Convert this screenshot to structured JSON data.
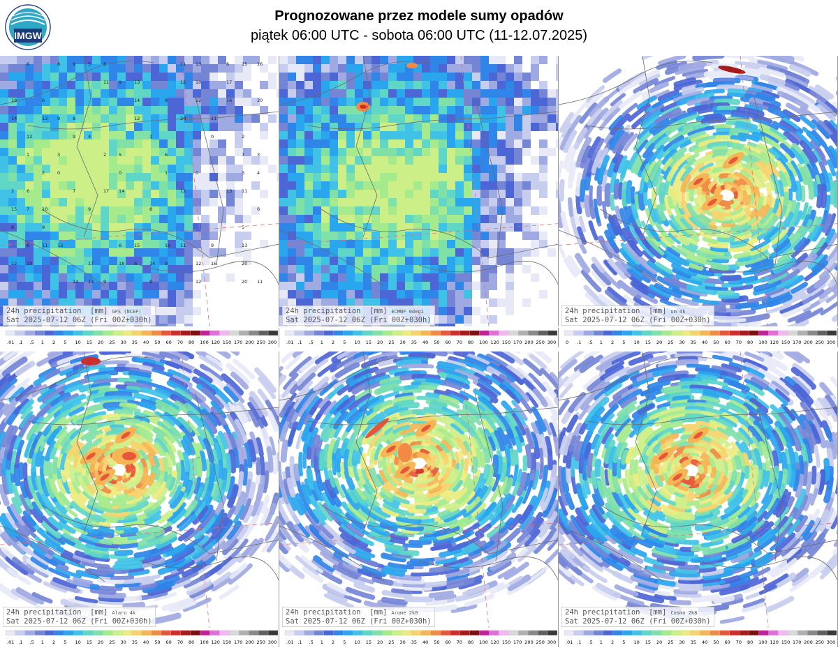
{
  "header": {
    "title": "Prognozowane przez modele sumy opadów",
    "subtitle": "piątek 06:00 UTC - sobota 06:00 UTC (11-12.07.2025)",
    "logo_text": "IMGW"
  },
  "colors": {
    "scale": [
      "#ffffff",
      "#e7e9f7",
      "#c7cdee",
      "#9fa9e2",
      "#7585d6",
      "#4c66d6",
      "#2f86e8",
      "#2aa6ee",
      "#40c2e6",
      "#5fd6c6",
      "#7fe0a8",
      "#a6ea8e",
      "#cdef88",
      "#eceb80",
      "#f6d36c",
      "#f5b554",
      "#f08a44",
      "#e6573a",
      "#cf2c2c",
      "#a81a1a",
      "#7d0f0f",
      "#c0209a",
      "#e070d8",
      "#f0b8ee",
      "#d8d8d8",
      "#b0b0b0",
      "#888888",
      "#606060",
      "#383838"
    ]
  },
  "panels": [
    {
      "id": "gfs",
      "label_line1": "24h precipitation  [mm]",
      "model": "GFS (NCEP)",
      "label_line2": "Sat 2025-07-12 06Z (Fri 00Z+030h)",
      "legend": [
        ".01",
        ".1",
        ".5",
        "1",
        "2",
        "5",
        "10",
        "15",
        "20",
        "25",
        "30",
        "35",
        "40",
        "50",
        "60",
        "70",
        "80",
        "100",
        "120",
        "150",
        "170",
        "200",
        "250",
        "300"
      ]
    },
    {
      "id": "ecmwf",
      "label_line1": "24h precipitation  [mm]",
      "model": "ECMWF 0deg1",
      "label_line2": "Sat 2025-07-12 06Z (Fri 00Z+030h)",
      "legend": [
        ".01",
        ".1",
        ".5",
        "1",
        "2",
        "5",
        "10",
        "15",
        "20",
        "25",
        "30",
        "35",
        "40",
        "50",
        "60",
        "70",
        "80",
        "100",
        "120",
        "150",
        "170",
        "200",
        "250",
        "300"
      ]
    },
    {
      "id": "um",
      "label_line1": "24h precipitation  [mm]",
      "model": "um 4k",
      "label_line2": "Sat 2025-07-12 06Z (Fri 00Z+030h)",
      "legend": [
        "0",
        ".1",
        ".5",
        "1",
        "2",
        "5",
        "10",
        "15",
        "20",
        "25",
        "30",
        "35",
        "40",
        "50",
        "60",
        "70",
        "80",
        "100",
        "120",
        "150",
        "170",
        "200",
        "250",
        "300"
      ]
    },
    {
      "id": "alaro",
      "label_line1": "24h precipitation  [mm]",
      "model": "Alaro 4k",
      "label_line2": "Sat 2025-07-12 06Z (Fri 00Z+030h)",
      "legend": [
        ".01",
        ".1",
        ".5",
        "1",
        "2",
        "5",
        "10",
        "15",
        "20",
        "25",
        "30",
        "35",
        "40",
        "50",
        "60",
        "70",
        "80",
        "100",
        "120",
        "150",
        "170",
        "200",
        "250",
        "300"
      ]
    },
    {
      "id": "arome",
      "label_line1": "24h precipitation  [mm]",
      "model": "Arome 2k0",
      "label_line2": "Sat 2025-07-12 06Z (Fri 00Z+030h)",
      "legend": [
        ".01",
        ".1",
        ".5",
        "1",
        "2",
        "5",
        "10",
        "15",
        "20",
        "25",
        "30",
        "35",
        "40",
        "50",
        "60",
        "70",
        "80",
        "100",
        "120",
        "150",
        "170",
        "200",
        "250",
        "300"
      ]
    },
    {
      "id": "cosmo",
      "label_line1": "24h precipitation  [mm]",
      "model": "Cosmo 2k8",
      "label_line2": "Sat 2025-07-12 06Z (Fri 00Z+030h)",
      "legend": [
        ".01",
        ".1",
        ".5",
        "1",
        "2",
        "5",
        "10",
        "15",
        "20",
        "25",
        "30",
        "35",
        "40",
        "50",
        "60",
        "70",
        "80",
        "100",
        "120",
        "150",
        "170",
        "200",
        "250",
        "300"
      ]
    }
  ],
  "gfs_grid_values": [
    "6",
    "8",
    "9",
    "5",
    "6",
    "11",
    "13",
    "6",
    "15",
    "16",
    "11",
    "9",
    "13",
    "12",
    "10",
    "17",
    "18",
    "6",
    "14",
    "9",
    "12",
    "16",
    "20",
    "14",
    "13",
    "9",
    "8",
    "12",
    "20",
    "11",
    "12",
    "9",
    "4",
    "1",
    "0",
    "2",
    "1",
    "3",
    "2",
    "5",
    "6",
    "7",
    "3",
    "2",
    "0",
    "0",
    "1",
    "0",
    "3",
    "4",
    "2",
    "6",
    "7",
    "17",
    "14",
    "12",
    "13",
    "11",
    "15",
    "7",
    "10",
    "9",
    "8"
  ]
}
